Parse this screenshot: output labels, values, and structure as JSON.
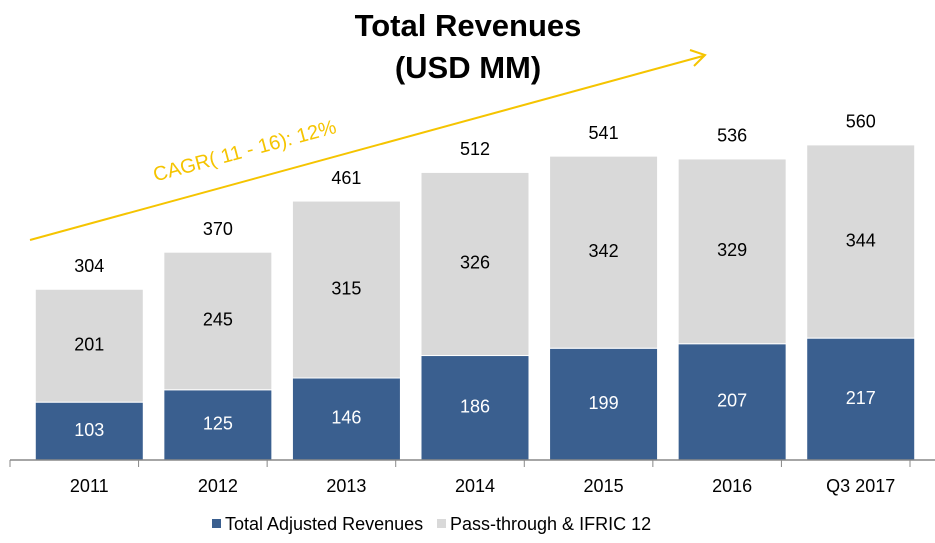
{
  "chart_data": {
    "type": "stacked_bar",
    "title": "Total Revenues",
    "subtitle": "(USD MM)",
    "annotation": "CAGR( 11 - 16): 12%",
    "categories": [
      "2011",
      "2012",
      "2013",
      "2014",
      "2015",
      "2016",
      "Q3 2017"
    ],
    "series": [
      {
        "name": "Total Adjusted Revenues",
        "color": "#3a5f8f",
        "values": [
          103,
          125,
          146,
          186,
          199,
          207,
          217
        ]
      },
      {
        "name": "Pass-through & IFRIC 12",
        "color": "#d9d9d9",
        "values": [
          201,
          245,
          315,
          326,
          342,
          329,
          344
        ]
      }
    ],
    "totals": [
      304,
      370,
      461,
      512,
      541,
      536,
      560
    ],
    "ylim": [
      0,
      600
    ],
    "annotation_color": "#f5c400"
  }
}
